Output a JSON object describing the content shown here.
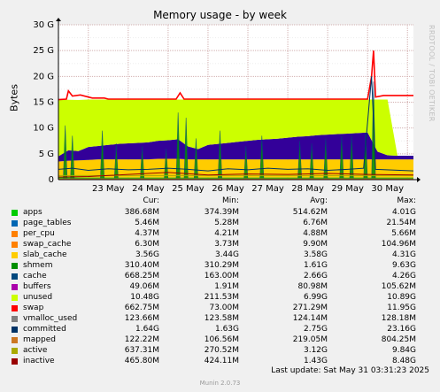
{
  "title": "Memory usage - by week",
  "watermark": "RRDTOOL / TOBI OETIKER",
  "colors": {
    "background": "#f0f0f0",
    "plot_background": "#ffffff",
    "grid_major": "#d2b0b0",
    "grid_minor": "#ededed",
    "axis": "#000000"
  },
  "chart_data": {
    "type": "area",
    "title": "Memory usage - by week",
    "ylabel": "Bytes",
    "ylim": [
      0,
      30
    ],
    "y_unit": "G",
    "y_ticks": [
      {
        "value": 0,
        "label": "0"
      },
      {
        "value": 5,
        "label": "5 G"
      },
      {
        "value": 10,
        "label": "10 G"
      },
      {
        "value": 15,
        "label": "15 G"
      },
      {
        "value": 20,
        "label": "20 G"
      },
      {
        "value": 25,
        "label": "25 G"
      },
      {
        "value": 30,
        "label": "30 G"
      }
    ],
    "x_labels": [
      "23 May",
      "24 May",
      "25 May",
      "26 May",
      "27 May",
      "28 May",
      "29 May",
      "30 May"
    ],
    "x_range_days": [
      22.25,
      31.15
    ],
    "grid": true,
    "layers_x": [
      22.25,
      22.5,
      22.75,
      23.0,
      23.25,
      23.5,
      23.75,
      24.0,
      24.25,
      24.5,
      24.75,
      25.0,
      25.25,
      25.5,
      25.75,
      26.0,
      26.25,
      26.5,
      26.75,
      27.0,
      27.25,
      27.5,
      27.75,
      28.0,
      28.25,
      28.5,
      28.75,
      29.0,
      29.25,
      29.5,
      29.75,
      30.0,
      30.25,
      30.5,
      30.75,
      31.0,
      31.15
    ],
    "layers": [
      {
        "name": "apps",
        "color": "#00cc00",
        "values": [
          0.5,
          0.45,
          0.4,
          0.4,
          0.4,
          0.4,
          0.4,
          0.4,
          0.4,
          0.4,
          0.4,
          0.4,
          0.4,
          0.4,
          0.4,
          0.4,
          0.4,
          0.4,
          0.4,
          0.4,
          0.4,
          0.4,
          0.4,
          0.4,
          0.4,
          0.4,
          0.4,
          0.4,
          0.4,
          0.4,
          0.4,
          0.4,
          0.4,
          0.4,
          0.4,
          0.4,
          0.4
        ]
      },
      {
        "name": "page_tables",
        "color": "#0066b3",
        "values": [
          0.01,
          0.01,
          0.01,
          0.01,
          0.01,
          0.01,
          0.01,
          0.01,
          0.01,
          0.01,
          0.01,
          0.01,
          0.01,
          0.01,
          0.01,
          0.01,
          0.01,
          0.01,
          0.01,
          0.01,
          0.01,
          0.01,
          0.01,
          0.01,
          0.01,
          0.01,
          0.01,
          0.01,
          0.01,
          0.01,
          0.01,
          0.01,
          0.01,
          0.01,
          0.01,
          0.01,
          0.01
        ]
      },
      {
        "name": "per_cpu",
        "color": "#ff8000",
        "values": [
          0.01,
          0.01,
          0.01,
          0.01,
          0.01,
          0.01,
          0.01,
          0.01,
          0.01,
          0.01,
          0.01,
          0.01,
          0.01,
          0.01,
          0.01,
          0.01,
          0.01,
          0.01,
          0.01,
          0.01,
          0.01,
          0.01,
          0.01,
          0.01,
          0.01,
          0.01,
          0.01,
          0.01,
          0.01,
          0.01,
          0.01,
          0.01,
          0.01,
          0.01,
          0.01,
          0.01,
          0.01
        ]
      },
      {
        "name": "slab_cache",
        "color": "#ffcc00",
        "values": [
          3.0,
          3.2,
          3.3,
          3.4,
          3.5,
          3.5,
          3.5,
          3.5,
          3.5,
          3.5,
          3.6,
          3.6,
          3.6,
          3.5,
          3.5,
          3.5,
          3.5,
          3.5,
          3.5,
          3.5,
          3.5,
          3.5,
          3.5,
          3.5,
          3.5,
          3.5,
          3.5,
          3.5,
          3.5,
          3.5,
          3.5,
          3.5,
          3.5,
          3.5,
          3.5,
          3.5,
          3.5
        ]
      },
      {
        "name": "cache",
        "color": "#330099",
        "values": [
          1.0,
          2.0,
          1.8,
          2.5,
          2.6,
          2.8,
          3.0,
          3.1,
          3.2,
          3.3,
          3.5,
          3.6,
          3.8,
          2.5,
          2.0,
          2.8,
          3.0,
          3.2,
          3.4,
          3.6,
          3.8,
          3.9,
          4.0,
          4.2,
          4.4,
          4.5,
          4.7,
          4.8,
          4.9,
          5.0,
          5.1,
          5.2,
          1.5,
          0.8,
          0.7,
          0.7,
          0.7
        ]
      },
      {
        "name": "unused",
        "color": "#ccff00",
        "values": [
          11.0,
          9.8,
          9.9,
          9.2,
          9.0,
          8.8,
          8.6,
          8.5,
          8.4,
          8.3,
          8.0,
          7.9,
          7.7,
          9.1,
          9.6,
          8.8,
          8.6,
          8.4,
          8.2,
          8.0,
          7.8,
          7.7,
          7.6,
          7.4,
          7.2,
          7.1,
          6.9,
          6.8,
          6.7,
          6.6,
          6.5,
          6.4,
          10.1,
          10.8,
          0.0,
          0.0,
          0.0
        ]
      }
    ],
    "lines": [
      {
        "name": "swap",
        "color": "#ff0000",
        "points": [
          [
            22.25,
            15.5
          ],
          [
            22.45,
            15.6
          ],
          [
            22.5,
            17.2
          ],
          [
            22.6,
            16.2
          ],
          [
            22.8,
            16.4
          ],
          [
            23.1,
            15.8
          ],
          [
            23.4,
            15.8
          ],
          [
            23.5,
            15.6
          ],
          [
            25.2,
            15.6
          ],
          [
            25.3,
            16.8
          ],
          [
            25.4,
            15.6
          ],
          [
            30.0,
            15.6
          ],
          [
            30.1,
            20.0
          ],
          [
            30.15,
            25.0
          ],
          [
            30.2,
            16.0
          ],
          [
            30.4,
            16.3
          ],
          [
            31.15,
            16.3
          ]
        ]
      },
      {
        "name": "vmalloc_used",
        "color": "#808080",
        "points": [
          [
            22.25,
            0.12
          ],
          [
            31.15,
            0.12
          ]
        ]
      },
      {
        "name": "committed",
        "color": "#003366",
        "points": [
          [
            22.25,
            2.0
          ],
          [
            22.6,
            2.2
          ],
          [
            23.0,
            1.8
          ],
          [
            23.5,
            2.1
          ],
          [
            24.0,
            1.9
          ],
          [
            24.5,
            2.0
          ],
          [
            25.0,
            2.2
          ],
          [
            25.5,
            2.0
          ],
          [
            26.0,
            1.7
          ],
          [
            26.5,
            2.1
          ],
          [
            27.0,
            1.9
          ],
          [
            27.5,
            2.2
          ],
          [
            28.0,
            2.0
          ],
          [
            28.5,
            2.1
          ],
          [
            29.0,
            1.8
          ],
          [
            29.5,
            2.0
          ],
          [
            29.9,
            2.2
          ],
          [
            30.1,
            20.0
          ],
          [
            30.2,
            2.0
          ],
          [
            31.15,
            1.7
          ]
        ]
      },
      {
        "name": "mapped",
        "color": "#cc7722",
        "points": [
          [
            22.25,
            0.15
          ],
          [
            31.15,
            0.15
          ]
        ]
      },
      {
        "name": "active",
        "color": "#aaaa00",
        "points": [
          [
            22.25,
            0.8
          ],
          [
            31.15,
            0.8
          ]
        ]
      },
      {
        "name": "inactive",
        "color": "#990000",
        "points": [
          [
            22.25,
            0.5
          ],
          [
            23.0,
            0.6
          ],
          [
            24.0,
            1.0
          ],
          [
            25.0,
            1.4
          ],
          [
            26.0,
            0.9
          ],
          [
            27.0,
            1.1
          ],
          [
            28.0,
            1.0
          ],
          [
            29.0,
            1.2
          ],
          [
            30.0,
            1.0
          ],
          [
            31.15,
            0.9
          ]
        ]
      }
    ],
    "spikes": [
      {
        "x": 22.42,
        "h": 10.5
      },
      {
        "x": 22.6,
        "h": 8.5
      },
      {
        "x": 23.35,
        "h": 9.5
      },
      {
        "x": 23.7,
        "h": 7.0
      },
      {
        "x": 24.35,
        "h": 6.5
      },
      {
        "x": 24.95,
        "h": 6.0
      },
      {
        "x": 25.25,
        "h": 13.0
      },
      {
        "x": 25.45,
        "h": 12.0
      },
      {
        "x": 25.7,
        "h": 8.0
      },
      {
        "x": 26.3,
        "h": 9.5
      },
      {
        "x": 26.95,
        "h": 6.5
      },
      {
        "x": 27.35,
        "h": 8.5
      },
      {
        "x": 28.3,
        "h": 7.5
      },
      {
        "x": 28.6,
        "h": 7.0
      },
      {
        "x": 28.95,
        "h": 8.0
      },
      {
        "x": 29.35,
        "h": 8.5
      },
      {
        "x": 29.6,
        "h": 8.5
      },
      {
        "x": 29.95,
        "h": 9.0
      },
      {
        "x": 30.15,
        "h": 19.0
      }
    ]
  },
  "legend": {
    "headers": {
      "cur": "Cur:",
      "min": "Min:",
      "avg": "Avg:",
      "max": "Max:"
    },
    "rows": [
      {
        "name": "apps",
        "color": "#00cc00",
        "cur": "386.68M",
        "min": "374.39M",
        "avg": "514.62M",
        "max": "4.01G"
      },
      {
        "name": "page_tables",
        "color": "#0066b3",
        "cur": "5.46M",
        "min": "5.28M",
        "avg": "6.76M",
        "max": "21.54M"
      },
      {
        "name": "per_cpu",
        "color": "#ff8000",
        "cur": "4.37M",
        "min": "4.21M",
        "avg": "4.88M",
        "max": "5.66M"
      },
      {
        "name": "swap_cache",
        "color": "#ff8000",
        "cur": "6.30M",
        "min": "3.73M",
        "avg": "9.90M",
        "max": "104.96M"
      },
      {
        "name": "slab_cache",
        "color": "#ffcc00",
        "cur": "3.56G",
        "min": "3.44G",
        "avg": "3.58G",
        "max": "4.31G"
      },
      {
        "name": "shmem",
        "color": "#008f00",
        "cur": "310.40M",
        "min": "310.29M",
        "avg": "1.61G",
        "max": "9.63G"
      },
      {
        "name": "cache",
        "color": "#00487d",
        "cur": "668.25M",
        "min": "163.00M",
        "avg": "2.66G",
        "max": "4.26G"
      },
      {
        "name": "buffers",
        "color": "#aa00aa",
        "cur": "49.06M",
        "min": "1.91M",
        "avg": "80.98M",
        "max": "105.62M"
      },
      {
        "name": "unused",
        "color": "#ccff00",
        "cur": "10.48G",
        "min": "211.53M",
        "avg": "6.99G",
        "max": "10.89G"
      },
      {
        "name": "swap",
        "color": "#ff0000",
        "cur": "662.75M",
        "min": "73.00M",
        "avg": "271.29M",
        "max": "11.95G"
      },
      {
        "name": "vmalloc_used",
        "color": "#808080",
        "cur": "123.66M",
        "min": "123.58M",
        "avg": "124.14M",
        "max": "128.18M"
      },
      {
        "name": "committed",
        "color": "#003366",
        "cur": "1.64G",
        "min": "1.63G",
        "avg": "2.75G",
        "max": "23.16G"
      },
      {
        "name": "mapped",
        "color": "#cc7722",
        "cur": "122.22M",
        "min": "106.56M",
        "avg": "219.05M",
        "max": "804.25M"
      },
      {
        "name": "active",
        "color": "#aaaa00",
        "cur": "637.31M",
        "min": "270.52M",
        "avg": "3.12G",
        "max": "9.84G"
      },
      {
        "name": "inactive",
        "color": "#990000",
        "cur": "465.80M",
        "min": "424.11M",
        "avg": "1.43G",
        "max": "8.48G"
      }
    ]
  },
  "footer": {
    "last_update": "Last update: Sat May 31 03:31:23 2025",
    "munin": "Munin 2.0.73"
  }
}
